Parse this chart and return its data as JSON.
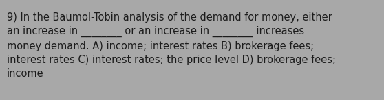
{
  "text": "9) In the Baumol-Tobin analysis of the demand for money, either\nan increase in ________ or an increase in ________ increases\nmoney demand. A) income; interest rates B) brokerage fees;\ninterest rates C) interest rates; the price level D) brokerage fees;\nincome",
  "background_color": "#a8a8a8",
  "text_color": "#1c1c1c",
  "font_size": 10.5,
  "fig_width": 5.58,
  "fig_height": 1.46
}
